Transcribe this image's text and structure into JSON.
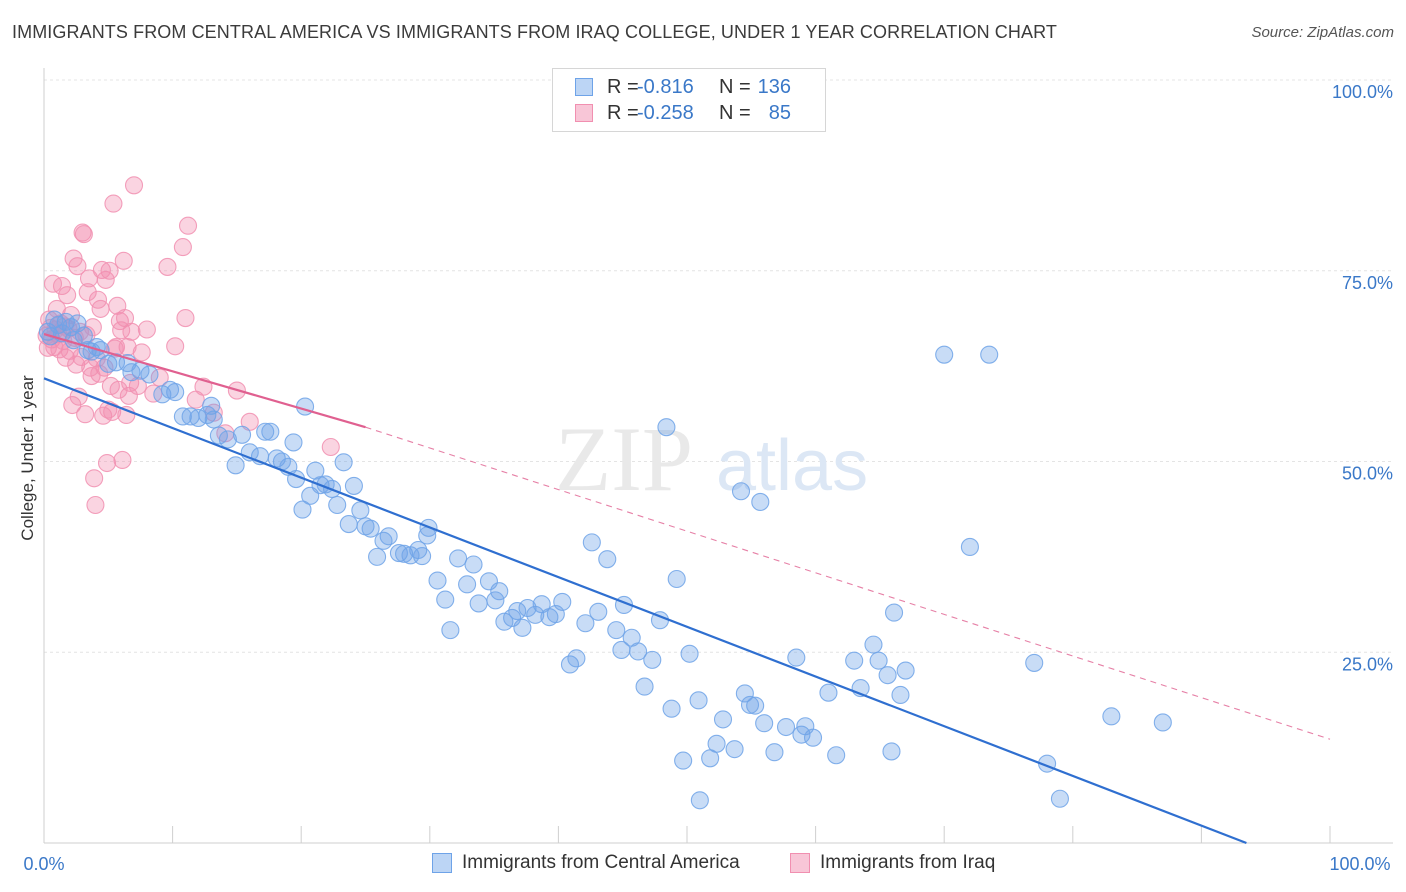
{
  "title": "IMMIGRANTS FROM CENTRAL AMERICA VS IMMIGRANTS FROM IRAQ COLLEGE, UNDER 1 YEAR CORRELATION CHART",
  "source": "Source: ZipAtlas.com",
  "watermark": {
    "zip": "ZIP",
    "atlas": "atlas"
  },
  "legend": {
    "rows": [
      {
        "r_label": "R =",
        "r_value": "-0.816",
        "n_label": "N =",
        "n_value": "136",
        "color": "#6ea3e8"
      },
      {
        "r_label": "R =",
        "r_value": "-0.258",
        "n_label": "N =",
        "n_value": "85",
        "color": "#f18fb0"
      }
    ]
  },
  "chart_data": {
    "type": "scatter",
    "xlabel": "",
    "ylabel": "College, Under 1 year",
    "xlim": [
      0,
      100
    ],
    "ylim": [
      0,
      100
    ],
    "x_tick_labels": [
      "0.0%",
      "100.0%"
    ],
    "y_tick_labels": [
      "100.0%",
      "75.0%",
      "50.0%",
      "25.0%"
    ],
    "y_ticks": [
      100,
      75,
      50,
      25
    ],
    "grid": true,
    "legend_position": "top-center",
    "series": [
      {
        "name": "Immigrants from Central America",
        "color": "#6ea3e8",
        "trend": {
          "x": [
            0,
            93.5
          ],
          "y": [
            60.9,
            0
          ],
          "color": "#2f6fd0"
        },
        "points": [
          [
            0.3,
            67.0
          ],
          [
            0.5,
            66.4
          ],
          [
            0.8,
            68.6
          ],
          [
            1.1,
            67.9
          ],
          [
            1.4,
            66.8
          ],
          [
            1.7,
            68.3
          ],
          [
            2.1,
            67.6
          ],
          [
            2.3,
            65.9
          ],
          [
            2.6,
            68.1
          ],
          [
            3.1,
            66.5
          ],
          [
            3.4,
            64.6
          ],
          [
            3.7,
            64.4
          ],
          [
            4.1,
            65.0
          ],
          [
            4.4,
            64.6
          ],
          [
            5.0,
            62.8
          ],
          [
            5.6,
            63.0
          ],
          [
            6.5,
            62.9
          ],
          [
            6.8,
            61.7
          ],
          [
            7.5,
            61.9
          ],
          [
            8.2,
            61.4
          ],
          [
            9.2,
            58.8
          ],
          [
            9.8,
            59.4
          ],
          [
            10.2,
            59.1
          ],
          [
            10.8,
            55.9
          ],
          [
            11.4,
            55.9
          ],
          [
            12.0,
            55.7
          ],
          [
            12.7,
            56.1
          ],
          [
            13.0,
            57.3
          ],
          [
            13.2,
            55.5
          ],
          [
            13.6,
            53.4
          ],
          [
            14.3,
            52.9
          ],
          [
            14.9,
            49.5
          ],
          [
            15.4,
            53.5
          ],
          [
            16.0,
            51.2
          ],
          [
            16.8,
            50.7
          ],
          [
            17.2,
            53.9
          ],
          [
            17.6,
            53.9
          ],
          [
            18.1,
            50.4
          ],
          [
            18.5,
            50.0
          ],
          [
            19.0,
            49.3
          ],
          [
            19.4,
            52.5
          ],
          [
            19.6,
            47.7
          ],
          [
            20.1,
            43.7
          ],
          [
            20.3,
            57.2
          ],
          [
            20.7,
            45.5
          ],
          [
            21.1,
            48.8
          ],
          [
            21.5,
            46.9
          ],
          [
            21.9,
            47.0
          ],
          [
            22.4,
            46.4
          ],
          [
            22.8,
            44.3
          ],
          [
            23.3,
            49.9
          ],
          [
            23.7,
            41.8
          ],
          [
            24.1,
            46.8
          ],
          [
            24.6,
            43.6
          ],
          [
            25.0,
            41.5
          ],
          [
            25.4,
            41.2
          ],
          [
            25.9,
            37.5
          ],
          [
            26.4,
            39.6
          ],
          [
            26.8,
            40.2
          ],
          [
            27.6,
            38.0
          ],
          [
            28.0,
            37.9
          ],
          [
            28.5,
            37.7
          ],
          [
            29.1,
            38.4
          ],
          [
            29.4,
            37.6
          ],
          [
            29.8,
            40.3
          ],
          [
            29.9,
            41.3
          ],
          [
            30.6,
            34.4
          ],
          [
            31.2,
            31.9
          ],
          [
            31.6,
            27.9
          ],
          [
            32.2,
            37.3
          ],
          [
            32.9,
            33.9
          ],
          [
            33.4,
            36.5
          ],
          [
            33.8,
            31.4
          ],
          [
            34.6,
            34.3
          ],
          [
            35.1,
            31.8
          ],
          [
            35.4,
            33.0
          ],
          [
            35.8,
            29.0
          ],
          [
            36.4,
            29.5
          ],
          [
            36.8,
            30.4
          ],
          [
            37.2,
            28.2
          ],
          [
            37.6,
            30.8
          ],
          [
            38.2,
            29.9
          ],
          [
            38.7,
            31.3
          ],
          [
            39.3,
            29.6
          ],
          [
            39.8,
            30.0
          ],
          [
            40.3,
            31.6
          ],
          [
            40.9,
            23.4
          ],
          [
            41.4,
            24.2
          ],
          [
            42.1,
            28.8
          ],
          [
            42.6,
            39.4
          ],
          [
            43.1,
            30.3
          ],
          [
            43.8,
            37.2
          ],
          [
            44.5,
            27.9
          ],
          [
            44.9,
            25.3
          ],
          [
            45.1,
            31.2
          ],
          [
            45.7,
            26.9
          ],
          [
            46.2,
            25.1
          ],
          [
            46.7,
            20.5
          ],
          [
            47.3,
            24.0
          ],
          [
            47.9,
            29.2
          ],
          [
            48.4,
            54.5
          ],
          [
            48.8,
            17.6
          ],
          [
            49.2,
            34.6
          ],
          [
            49.7,
            10.8
          ],
          [
            50.2,
            24.8
          ],
          [
            50.9,
            18.7
          ],
          [
            51.0,
            5.6
          ],
          [
            51.8,
            11.1
          ],
          [
            52.3,
            13.0
          ],
          [
            52.8,
            16.2
          ],
          [
            53.7,
            12.3
          ],
          [
            54.2,
            46.1
          ],
          [
            54.5,
            19.6
          ],
          [
            54.9,
            18.1
          ],
          [
            55.3,
            18.0
          ],
          [
            55.7,
            44.7
          ],
          [
            56.0,
            15.7
          ],
          [
            56.8,
            11.9
          ],
          [
            57.7,
            15.2
          ],
          [
            58.5,
            24.3
          ],
          [
            58.9,
            14.2
          ],
          [
            59.2,
            15.3
          ],
          [
            59.8,
            13.8
          ],
          [
            61.0,
            19.7
          ],
          [
            61.6,
            11.5
          ],
          [
            63.0,
            23.9
          ],
          [
            63.5,
            20.3
          ],
          [
            64.5,
            26.0
          ],
          [
            64.9,
            23.9
          ],
          [
            65.6,
            22.0
          ],
          [
            65.9,
            12.0
          ],
          [
            66.1,
            30.2
          ],
          [
            66.6,
            19.4
          ],
          [
            67.0,
            22.6
          ],
          [
            70.0,
            64.0
          ],
          [
            72.0,
            38.8
          ],
          [
            73.5,
            64.0
          ],
          [
            77.0,
            23.6
          ],
          [
            78.0,
            10.4
          ],
          [
            79.0,
            5.8
          ],
          [
            83.0,
            16.6
          ],
          [
            87.0,
            15.8
          ]
        ]
      },
      {
        "name": "Immigrants from Iraq",
        "color": "#f18fb0",
        "trend": {
          "x": [
            0,
            25.0
          ],
          "y": [
            66.7,
            54.5
          ],
          "color": "#e06090",
          "dashed_to": [
            100,
            13.6
          ]
        },
        "points": [
          [
            0.2,
            66.5
          ],
          [
            0.3,
            64.9
          ],
          [
            0.4,
            68.6
          ],
          [
            0.5,
            67.5
          ],
          [
            0.6,
            66.0
          ],
          [
            0.7,
            73.3
          ],
          [
            0.8,
            65.0
          ],
          [
            0.9,
            67.3
          ],
          [
            1.0,
            70.0
          ],
          [
            1.1,
            66.7
          ],
          [
            1.2,
            64.7
          ],
          [
            1.3,
            68.1
          ],
          [
            1.4,
            73.0
          ],
          [
            1.5,
            65.8
          ],
          [
            1.6,
            67.7
          ],
          [
            1.7,
            63.6
          ],
          [
            1.8,
            71.8
          ],
          [
            1.9,
            67.4
          ],
          [
            2.0,
            64.5
          ],
          [
            2.1,
            69.2
          ],
          [
            2.2,
            57.4
          ],
          [
            2.3,
            76.6
          ],
          [
            2.4,
            66.2
          ],
          [
            2.5,
            62.7
          ],
          [
            2.6,
            75.6
          ],
          [
            2.7,
            58.5
          ],
          [
            2.8,
            67.0
          ],
          [
            2.9,
            63.7
          ],
          [
            3.0,
            80.0
          ],
          [
            3.1,
            79.8
          ],
          [
            3.2,
            56.2
          ],
          [
            3.3,
            66.6
          ],
          [
            3.4,
            72.2
          ],
          [
            3.5,
            74.0
          ],
          [
            3.6,
            62.3
          ],
          [
            3.7,
            61.2
          ],
          [
            3.8,
            67.6
          ],
          [
            3.9,
            47.8
          ],
          [
            4.0,
            44.3
          ],
          [
            4.1,
            63.5
          ],
          [
            4.2,
            71.2
          ],
          [
            4.3,
            61.5
          ],
          [
            4.4,
            70.0
          ],
          [
            4.5,
            75.1
          ],
          [
            4.6,
            56.0
          ],
          [
            4.7,
            62.3
          ],
          [
            4.8,
            73.8
          ],
          [
            4.9,
            49.8
          ],
          [
            5.0,
            56.8
          ],
          [
            5.1,
            75.0
          ],
          [
            5.2,
            59.9
          ],
          [
            5.3,
            56.5
          ],
          [
            5.4,
            83.8
          ],
          [
            5.5,
            64.8
          ],
          [
            5.6,
            65.0
          ],
          [
            5.7,
            70.4
          ],
          [
            5.8,
            59.4
          ],
          [
            5.9,
            68.4
          ],
          [
            6.0,
            67.2
          ],
          [
            6.1,
            50.2
          ],
          [
            6.2,
            76.3
          ],
          [
            6.3,
            68.8
          ],
          [
            6.4,
            56.1
          ],
          [
            6.5,
            65.0
          ],
          [
            6.6,
            58.6
          ],
          [
            6.7,
            60.3
          ],
          [
            6.8,
            67.0
          ],
          [
            7.0,
            86.2
          ],
          [
            7.3,
            59.9
          ],
          [
            7.6,
            64.3
          ],
          [
            8.0,
            67.3
          ],
          [
            8.5,
            58.9
          ],
          [
            9.0,
            61.0
          ],
          [
            9.6,
            75.5
          ],
          [
            10.2,
            65.1
          ],
          [
            10.8,
            78.1
          ],
          [
            11.0,
            68.8
          ],
          [
            11.2,
            80.9
          ],
          [
            11.8,
            58.1
          ],
          [
            12.4,
            59.8
          ],
          [
            13.2,
            56.4
          ],
          [
            14.1,
            53.7
          ],
          [
            15.0,
            59.3
          ],
          [
            16.0,
            55.2
          ],
          [
            22.3,
            51.9
          ]
        ]
      }
    ]
  }
}
